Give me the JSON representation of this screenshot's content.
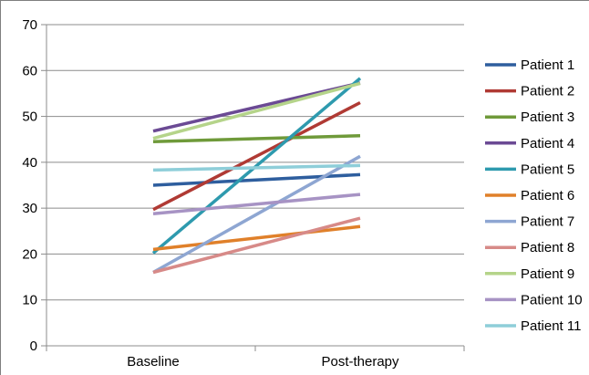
{
  "chart_data": {
    "type": "line",
    "categories": [
      "Baseline",
      "Post-therapy"
    ],
    "ylim": [
      0,
      70
    ],
    "yticks": [
      0,
      10,
      20,
      30,
      40,
      50,
      60,
      70
    ],
    "y_tick_labels": [
      "0",
      "10",
      "20",
      "30",
      "40",
      "50",
      "60",
      "70"
    ],
    "grid": "horizontal",
    "legend_position": "right",
    "series": [
      {
        "name": "Patient 1",
        "color": "#2E5E9E",
        "values": [
          35,
          37.3
        ]
      },
      {
        "name": "Patient 2",
        "color": "#B03A34",
        "values": [
          29.7,
          53
        ]
      },
      {
        "name": "Patient 3",
        "color": "#6F9A3A",
        "values": [
          44.5,
          45.8
        ]
      },
      {
        "name": "Patient 4",
        "color": "#6B4A94",
        "values": [
          46.8,
          57.3
        ]
      },
      {
        "name": "Patient 5",
        "color": "#2E9AAE",
        "values": [
          20.2,
          58.3
        ]
      },
      {
        "name": "Patient 6",
        "color": "#E0802A",
        "values": [
          21,
          26
        ]
      },
      {
        "name": "Patient 7",
        "color": "#8EA6D2",
        "values": [
          16,
          41.3
        ]
      },
      {
        "name": "Patient 8",
        "color": "#D78A88",
        "values": [
          16,
          27.8
        ]
      },
      {
        "name": "Patient 9",
        "color": "#B5D48A",
        "values": [
          45.2,
          57.2
        ]
      },
      {
        "name": "Patient 10",
        "color": "#A793C4",
        "values": [
          28.8,
          33
        ]
      },
      {
        "name": "Patient 11",
        "color": "#8ECED9",
        "values": [
          38.3,
          39.3
        ]
      }
    ]
  }
}
